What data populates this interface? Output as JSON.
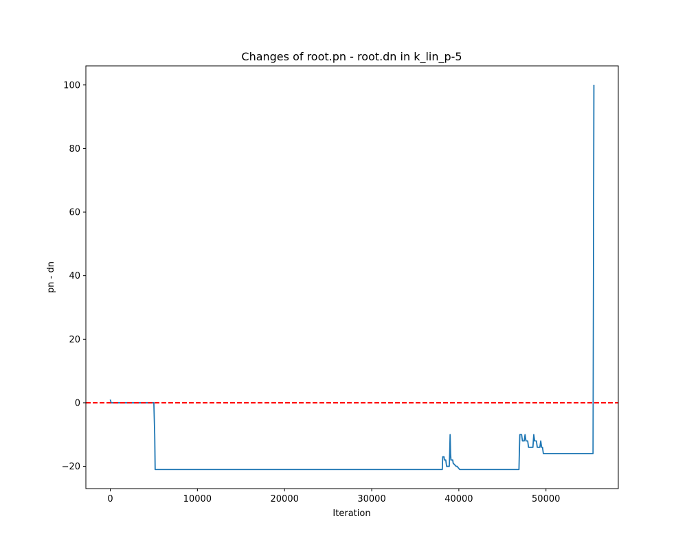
{
  "chart_data": {
    "type": "line",
    "title": "Changes of root.pn - root.dn in k_lin_p-5",
    "xlabel": "Iteration",
    "ylabel": "pn - dn",
    "xlim": [
      -2800,
      58300
    ],
    "ylim": [
      -27,
      106
    ],
    "xticks": [
      0,
      10000,
      20000,
      30000,
      40000,
      50000
    ],
    "xtick_labels": [
      "0",
      "10000",
      "20000",
      "30000",
      "40000",
      "50000"
    ],
    "yticks": [
      -20,
      0,
      20,
      40,
      60,
      80,
      100
    ],
    "ytick_labels": [
      "−20",
      "0",
      "20",
      "40",
      "60",
      "80",
      "100"
    ],
    "grid": false,
    "reference_lines": [
      {
        "orientation": "horizontal",
        "y": 0,
        "color": "#ff0000",
        "style": "dashed"
      }
    ],
    "series": [
      {
        "color": "#1f77b4",
        "x": [
          0,
          50,
          100,
          150,
          200,
          5000,
          5100,
          5150,
          38100,
          38150,
          38300,
          38350,
          38500,
          38600,
          38900,
          38950,
          39000,
          39050,
          39100,
          39150,
          39300,
          39350,
          39700,
          39800,
          40100,
          40200,
          46900,
          46950,
          47000,
          47100,
          47200,
          47300,
          47400,
          47500,
          47600,
          47700,
          47800,
          47900,
          48000,
          48100,
          48200,
          48300,
          48500,
          48600,
          48700,
          48800,
          48900,
          49000,
          49200,
          49300,
          49400,
          49500,
          49600,
          49700,
          49800,
          49900,
          50000,
          50100,
          55400,
          55450,
          55500
        ],
        "y": [
          1,
          0.5,
          0,
          0,
          0,
          0,
          -10,
          -21,
          -21,
          -17,
          -17,
          -18,
          -18,
          -20,
          -20,
          -16,
          -10,
          -16,
          -18,
          -18,
          -18,
          -19,
          -20,
          -20,
          -21,
          -21,
          -21,
          -15,
          -10,
          -10,
          -10,
          -12,
          -12,
          -12,
          -10,
          -12,
          -12,
          -12,
          -14,
          -14,
          -14,
          -14,
          -14,
          -10,
          -12,
          -12,
          -12,
          -14,
          -14,
          -14,
          -12,
          -14,
          -14,
          -16,
          -16,
          -16,
          -16,
          -16,
          -16,
          40,
          100
        ]
      }
    ]
  }
}
